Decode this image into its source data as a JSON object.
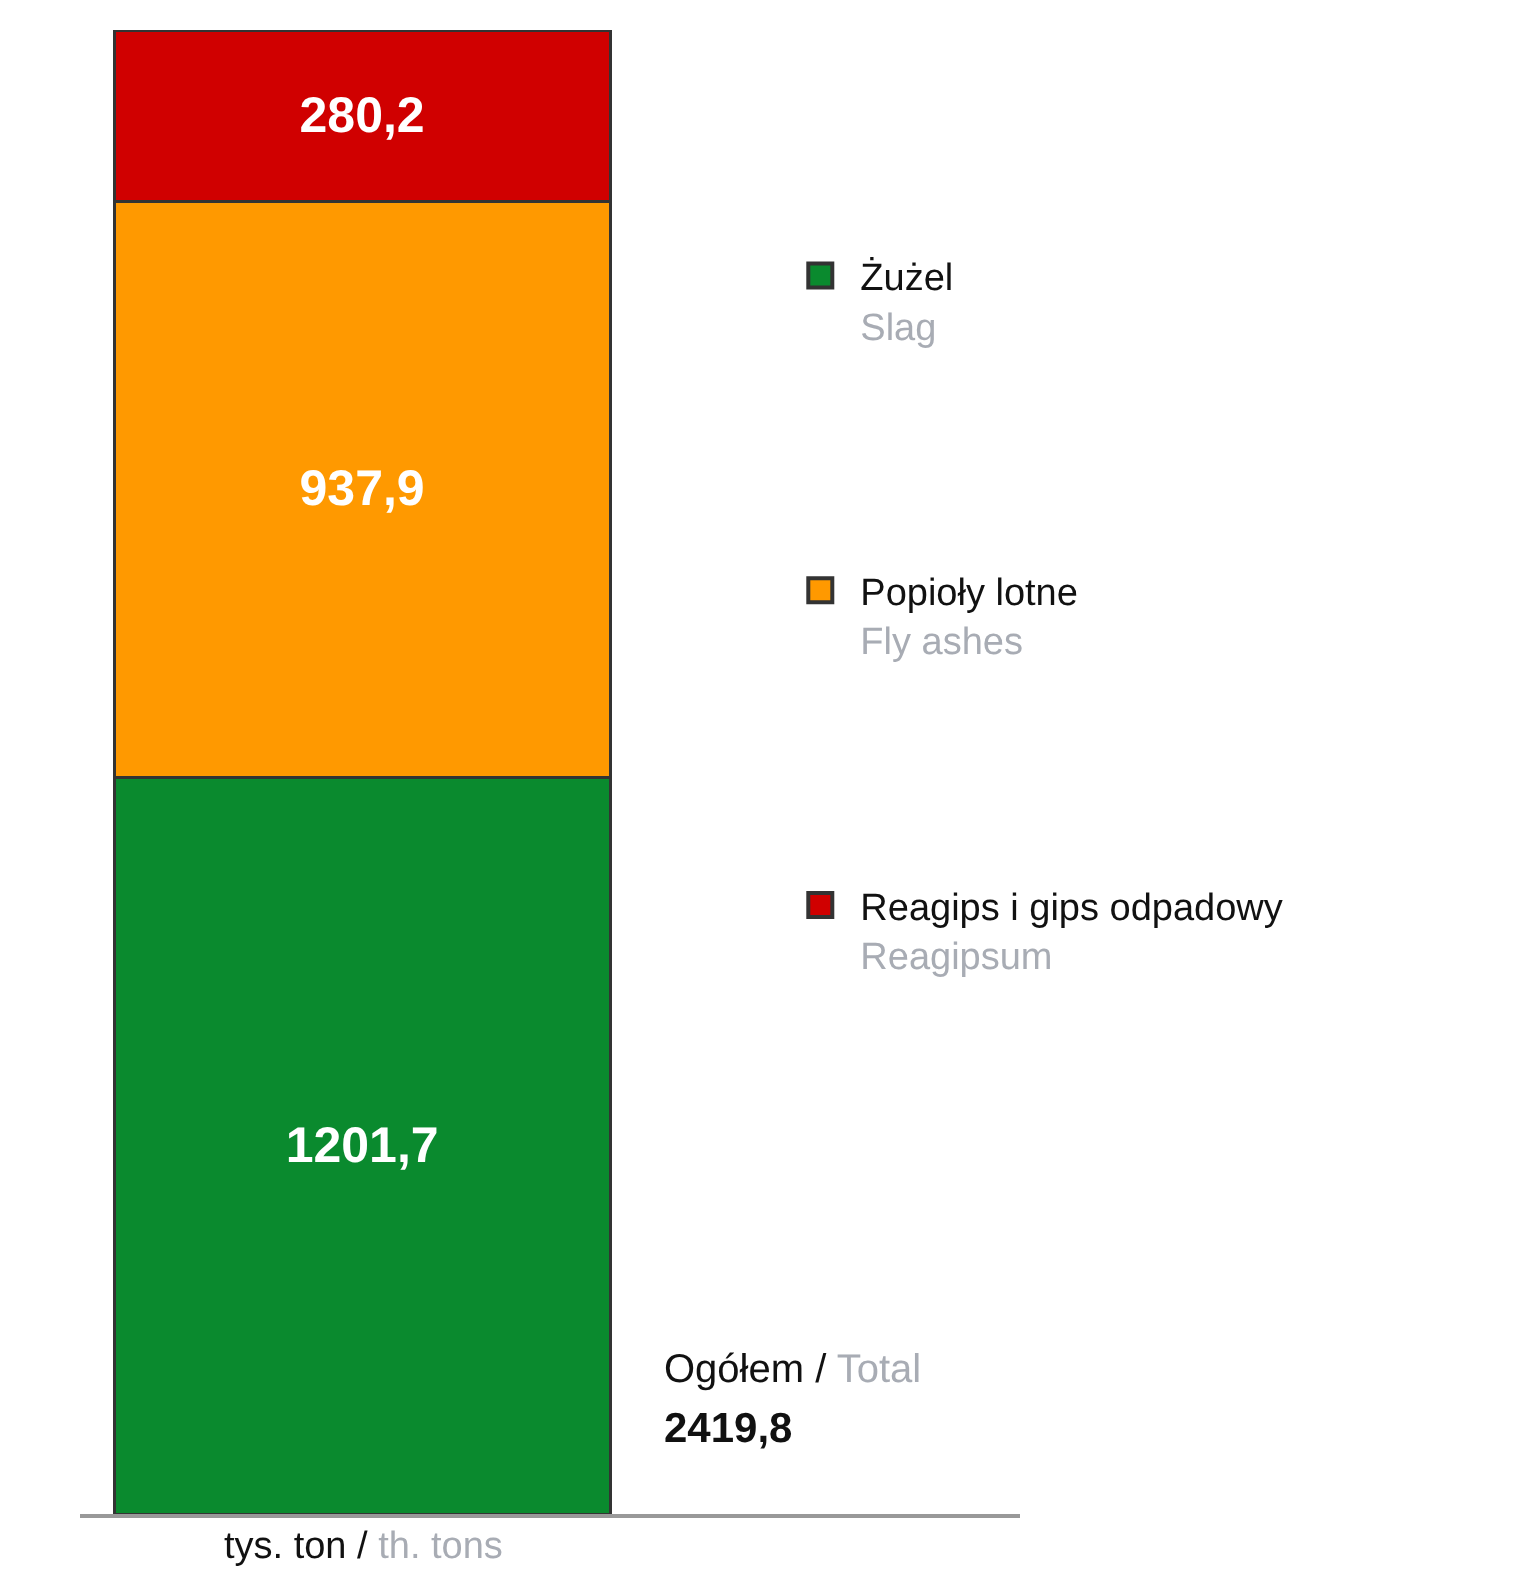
{
  "chart_data": {
    "type": "bar",
    "stacked": true,
    "categories": [
      null
    ],
    "series": [
      {
        "name": "Żużel\nSlag",
        "color": "#0a8a2e",
        "values": [
          1201.7
        ],
        "value_labels": [
          "1201,7"
        ]
      },
      {
        "name": "Popioły lotne\nFly ashes",
        "color": "#ff9900",
        "values": [
          937.9
        ],
        "value_labels": [
          "937,9"
        ]
      },
      {
        "name": "Reagips i gips odpadowy\nReagipsum",
        "color": "#d00000",
        "values": [
          280.2
        ],
        "value_labels": [
          "280,2"
        ]
      }
    ],
    "totals": [
      "2419,8"
    ],
    "annotations": [
      "Ogółem / Total"
    ],
    "xlabel": "tys. ton / th. tons",
    "legend": "right"
  }
}
